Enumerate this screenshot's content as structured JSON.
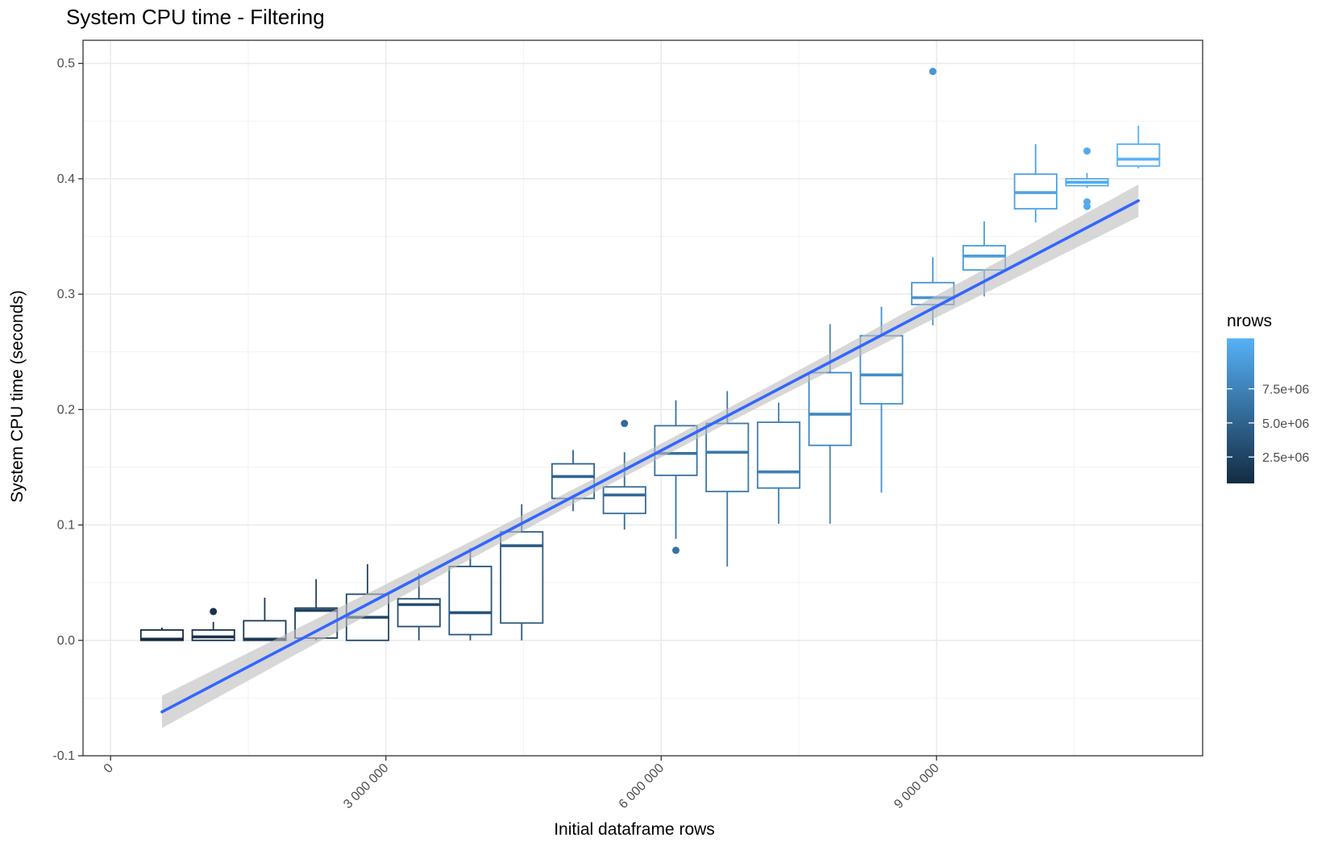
{
  "chart_data": {
    "type": "boxplot",
    "title": "System CPU time - Filtering",
    "xlabel": "Initial dataframe rows",
    "ylabel": "System CPU time (seconds)",
    "xlim": [
      -300000,
      11900000
    ],
    "ylim": [
      -0.1,
      0.52
    ],
    "x_ticks": [
      0,
      3000000,
      6000000,
      9000000
    ],
    "x_tick_labels": [
      "0",
      "3 000 000",
      "6 000 000",
      "9 000 000"
    ],
    "y_ticks": [
      -0.1,
      0.0,
      0.1,
      0.2,
      0.3,
      0.4,
      0.5
    ],
    "y_tick_labels": [
      "-0.1",
      "0.0",
      "0.1",
      "0.2",
      "0.3",
      "0.4",
      "0.5"
    ],
    "grid": true,
    "boxes": [
      {
        "x": 560000,
        "whisker_low": 0.0,
        "q1": 0.0,
        "median": 0.001,
        "q3": 0.009,
        "whisker_high": 0.011,
        "outliers": []
      },
      {
        "x": 1120000,
        "whisker_low": 0.0,
        "q1": 0.0,
        "median": 0.003,
        "q3": 0.009,
        "whisker_high": 0.016,
        "outliers": [
          0.025
        ]
      },
      {
        "x": 1680000,
        "whisker_low": 0.0,
        "q1": 0.0,
        "median": 0.001,
        "q3": 0.017,
        "whisker_high": 0.037,
        "outliers": []
      },
      {
        "x": 2240000,
        "whisker_low": 0.0,
        "q1": 0.002,
        "median": 0.026,
        "q3": 0.028,
        "whisker_high": 0.053,
        "outliers": []
      },
      {
        "x": 2800000,
        "whisker_low": 0.0,
        "q1": 0.0,
        "median": 0.02,
        "q3": 0.04,
        "whisker_high": 0.066,
        "outliers": []
      },
      {
        "x": 3360000,
        "whisker_low": 0.0,
        "q1": 0.012,
        "median": 0.031,
        "q3": 0.036,
        "whisker_high": 0.058,
        "outliers": []
      },
      {
        "x": 3920000,
        "whisker_low": 0.0,
        "q1": 0.005,
        "median": 0.024,
        "q3": 0.064,
        "whisker_high": 0.08,
        "outliers": []
      },
      {
        "x": 4480000,
        "whisker_low": 0.0,
        "q1": 0.015,
        "median": 0.082,
        "q3": 0.094,
        "whisker_high": 0.118,
        "outliers": []
      },
      {
        "x": 5040000,
        "whisker_low": 0.112,
        "q1": 0.123,
        "median": 0.142,
        "q3": 0.153,
        "whisker_high": 0.165,
        "outliers": []
      },
      {
        "x": 5600000,
        "whisker_low": 0.096,
        "q1": 0.11,
        "median": 0.126,
        "q3": 0.133,
        "whisker_high": 0.163,
        "outliers": [
          0.188
        ]
      },
      {
        "x": 6160000,
        "whisker_low": 0.088,
        "q1": 0.143,
        "median": 0.162,
        "q3": 0.186,
        "whisker_high": 0.208,
        "outliers": [
          0.078
        ]
      },
      {
        "x": 6720000,
        "whisker_low": 0.064,
        "q1": 0.129,
        "median": 0.163,
        "q3": 0.188,
        "whisker_high": 0.216,
        "outliers": []
      },
      {
        "x": 7280000,
        "whisker_low": 0.101,
        "q1": 0.132,
        "median": 0.146,
        "q3": 0.189,
        "whisker_high": 0.206,
        "outliers": []
      },
      {
        "x": 7840000,
        "whisker_low": 0.101,
        "q1": 0.169,
        "median": 0.196,
        "q3": 0.232,
        "whisker_high": 0.274,
        "outliers": []
      },
      {
        "x": 8400000,
        "whisker_low": 0.128,
        "q1": 0.205,
        "median": 0.23,
        "q3": 0.264,
        "whisker_high": 0.289,
        "outliers": []
      },
      {
        "x": 8960000,
        "whisker_low": 0.273,
        "q1": 0.291,
        "median": 0.297,
        "q3": 0.31,
        "whisker_high": 0.332,
        "outliers": [
          0.493
        ]
      },
      {
        "x": 9520000,
        "whisker_low": 0.298,
        "q1": 0.321,
        "median": 0.333,
        "q3": 0.342,
        "whisker_high": 0.363,
        "outliers": []
      },
      {
        "x": 10080000,
        "whisker_low": 0.362,
        "q1": 0.374,
        "median": 0.388,
        "q3": 0.404,
        "whisker_high": 0.43,
        "outliers": []
      },
      {
        "x": 10640000,
        "whisker_low": 0.392,
        "q1": 0.394,
        "median": 0.397,
        "q3": 0.4,
        "whisker_high": 0.405,
        "outliers": [
          0.424,
          0.38,
          0.376
        ]
      },
      {
        "x": 11200000,
        "whisker_low": 0.409,
        "q1": 0.411,
        "median": 0.417,
        "q3": 0.43,
        "whisker_high": 0.446,
        "outliers": []
      }
    ],
    "trend_line": {
      "x": [
        560000,
        11200000
      ],
      "y": [
        -0.062,
        0.381
      ],
      "ci_half_width_ends": 0.014,
      "ci_half_width_mid": 0.006,
      "color": "#3366ff",
      "ribbon_color": "#bdbdbd"
    },
    "color_scale": {
      "title": "nrows",
      "low_color": "#132b43",
      "high_color": "#56b1f7",
      "range": [
        560000,
        11200000
      ],
      "ticks": [
        2500000,
        5000000,
        7500000
      ],
      "tick_labels": [
        "2.5e+06",
        "5.0e+06",
        "7.5e+06"
      ]
    }
  }
}
